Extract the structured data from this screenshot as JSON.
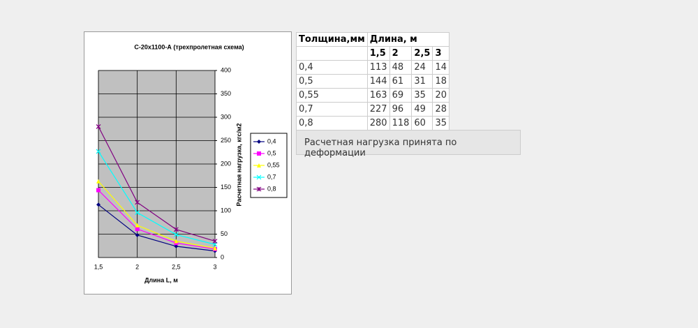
{
  "chart_data": {
    "type": "line",
    "title": "С-20x1100-А (трехпролетная схема)",
    "x_label": "Длина L, м",
    "y_label": "Расчетная нагрузка, кгс/м2",
    "x": [
      1.5,
      2,
      2.5,
      3
    ],
    "xlim": [
      1.5,
      3
    ],
    "xticks": [
      {
        "value": 1.5,
        "label": "1,5"
      },
      2,
      {
        "value": 2.5,
        "label": "2,5"
      },
      3
    ],
    "ylim": [
      0,
      400
    ],
    "yticks": [
      0,
      50,
      100,
      150,
      200,
      250,
      300,
      350,
      400
    ],
    "grid": true,
    "plot_background": "#c0c0c0",
    "legend": "right",
    "series": [
      {
        "name": "0,4",
        "color": "#000080",
        "values": [
          113,
          48,
          24,
          14
        ]
      },
      {
        "name": "0,5",
        "color": "#ff00ff",
        "values": [
          144,
          61,
          31,
          18
        ]
      },
      {
        "name": "0,55",
        "color": "#ffff00",
        "values": [
          163,
          69,
          35,
          20
        ]
      },
      {
        "name": "0,7",
        "color": "#00ffff",
        "values": [
          227,
          96,
          49,
          28
        ]
      },
      {
        "name": "0,8",
        "color": "#800080",
        "values": [
          280,
          118,
          60,
          35
        ]
      }
    ]
  },
  "table": {
    "header": [
      "Толщина,мм",
      "Длина, м"
    ],
    "subheader": [
      "1,5",
      "2",
      "2,5",
      "3"
    ],
    "rows": [
      [
        "0,4",
        113,
        48,
        24,
        14
      ],
      [
        "0,5",
        144,
        61,
        31,
        18
      ],
      [
        "0,55",
        163,
        69,
        35,
        20
      ],
      [
        "0,7",
        227,
        96,
        49,
        28
      ],
      [
        "0,8",
        280,
        118,
        60,
        35
      ]
    ]
  },
  "button": {
    "label": "Расчетная нагрузка принята по деформации"
  }
}
